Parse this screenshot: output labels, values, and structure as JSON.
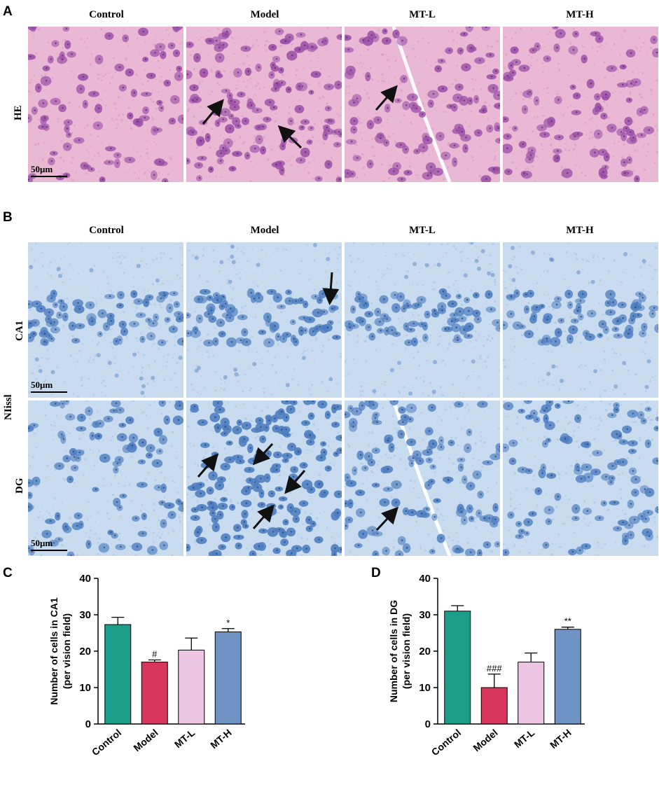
{
  "panels": {
    "A": {
      "letter": "A",
      "columns": [
        "Control",
        "Model",
        "MT-L",
        "MT-H"
      ],
      "row_label": "HE",
      "scale": "50μm"
    },
    "B": {
      "letter": "B",
      "columns": [
        "Control",
        "Model",
        "MT-L",
        "MT-H"
      ],
      "group_label": "NIissl",
      "row_labels": [
        "CA1",
        "DG"
      ],
      "scale": "50μm"
    },
    "C": {
      "letter": "C"
    },
    "D": {
      "letter": "D"
    }
  },
  "colors": {
    "he_background": "#e9b8d4",
    "he_cell": "#9c4fa8",
    "nissl_background": "#c9dcef",
    "nissl_cell": "#4f7fc1",
    "control": "#1a9e8a",
    "model": "#d9365e",
    "mtl": "#ecc6e3",
    "mth": "#6f93c4"
  },
  "chart_data": [
    {
      "type": "bar",
      "categories": [
        "Control",
        "Model",
        "MT-L",
        "MT-H"
      ],
      "values": [
        27.3,
        17.0,
        20.3,
        25.3
      ],
      "errors": [
        2.0,
        0.6,
        3.3,
        0.9
      ],
      "annotations": [
        "",
        "#",
        "",
        "*"
      ],
      "ylabel": "Number of cells in CA1\n(per vision field)",
      "ylim": [
        0,
        40
      ],
      "yticks": [
        0,
        10,
        20,
        30,
        40
      ]
    },
    {
      "type": "bar",
      "categories": [
        "Control",
        "Model",
        "MT-L",
        "MT-H"
      ],
      "values": [
        31.0,
        10.0,
        17.0,
        26.0
      ],
      "errors": [
        1.5,
        3.7,
        2.5,
        0.6
      ],
      "annotations": [
        "",
        "###",
        "",
        "**"
      ],
      "ylabel": "Number of cells in DG\n(per vision field)",
      "ylim": [
        0,
        40
      ],
      "yticks": [
        0,
        10,
        20,
        30,
        40
      ]
    }
  ]
}
